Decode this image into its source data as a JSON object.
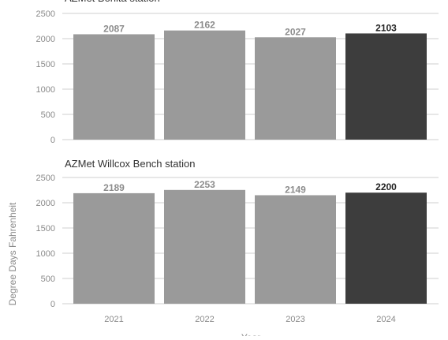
{
  "chart_data": [
    {
      "type": "bar",
      "title": "AZMet Bonita station",
      "categories": [
        "2021",
        "2022",
        "2023",
        "2024"
      ],
      "values": [
        2087,
        2162,
        2027,
        2103
      ],
      "ylim": [
        0,
        2500
      ],
      "yticks": [
        0,
        500,
        1000,
        1500,
        2000,
        2500
      ],
      "grid": true,
      "highlight_index": 3
    },
    {
      "type": "bar",
      "title": "AZMet Willcox Bench station",
      "categories": [
        "2021",
        "2022",
        "2023",
        "2024"
      ],
      "values": [
        2189,
        2253,
        2149,
        2200
      ],
      "ylim": [
        0,
        2500
      ],
      "yticks": [
        0,
        500,
        1000,
        1500,
        2000,
        2500
      ],
      "grid": true,
      "highlight_index": 3
    }
  ],
  "axes": {
    "ylabel": "Degree Days Fahrenheit",
    "xlabel": "Year"
  },
  "colors": {
    "bar": "#9a9a9a",
    "highlight_bar": "#3d3d3d",
    "label": "#8c8c8c",
    "highlight_label": "#222222",
    "grid": "#cfcfcf",
    "tick_text": "#8a8a8a",
    "title_text": "#333333"
  }
}
